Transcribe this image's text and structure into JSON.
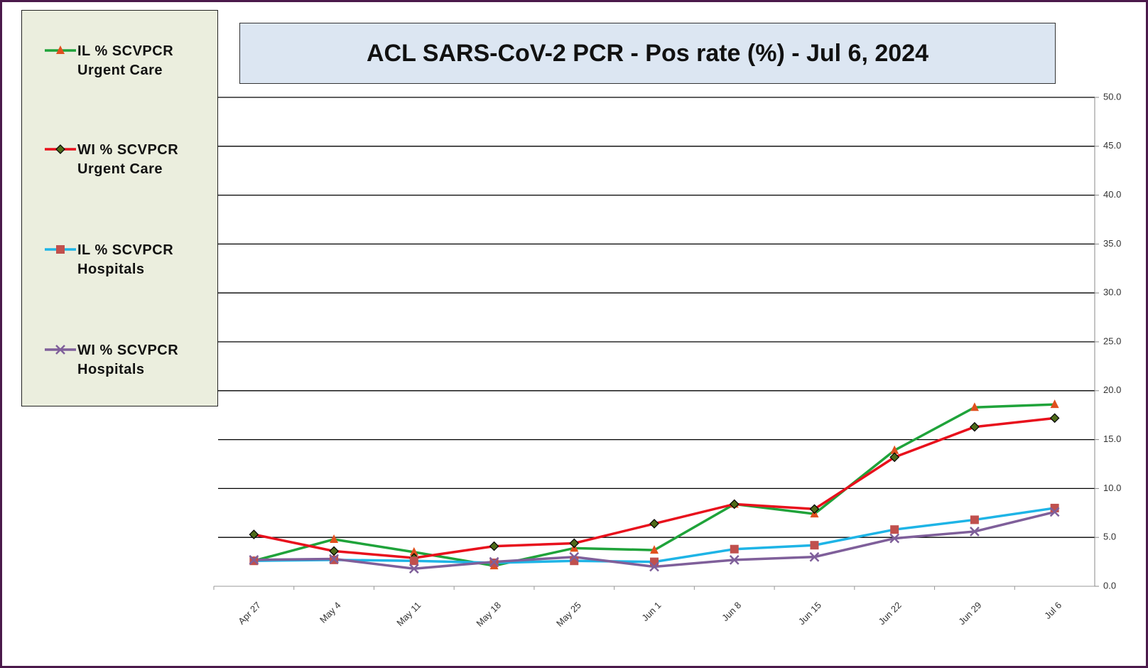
{
  "chart_data": {
    "type": "line",
    "title": "ACL SARS-CoV-2 PCR -  Pos rate (%) - Jul 6, 2024",
    "categories": [
      "Apr 27",
      "May 4",
      "May 11",
      "May 18",
      "May 25",
      "Jun 1",
      "Jun 8",
      "Jun 15",
      "Jun 22",
      "Jun 29",
      "Jul 6"
    ],
    "series": [
      {
        "name": "IL % SCVPCR Urgent Care",
        "color": "#1fa33a",
        "marker": "triangle",
        "marker_color": "#e0501e",
        "values": [
          2.6,
          4.8,
          3.5,
          2.1,
          3.9,
          3.7,
          8.4,
          7.4,
          13.9,
          18.3,
          18.6
        ]
      },
      {
        "name": "WI % SCVPCR Urgent Care",
        "color": "#e8101c",
        "marker": "diamond",
        "marker_color": "#4f6b1a",
        "values": [
          5.3,
          3.6,
          2.9,
          4.1,
          4.4,
          6.4,
          8.4,
          7.9,
          13.2,
          16.3,
          17.2
        ]
      },
      {
        "name": "IL % SCVPCR Hospitals",
        "color": "#1eb4e6",
        "marker": "square",
        "marker_color": "#c0504d",
        "values": [
          2.6,
          2.7,
          2.6,
          2.4,
          2.6,
          2.5,
          3.8,
          4.2,
          5.8,
          6.8,
          8.0
        ]
      },
      {
        "name": "WI % SCVPCR Hospitals",
        "color": "#7f5f9a",
        "marker": "x",
        "marker_color": "#7f5f9a",
        "values": [
          2.7,
          2.8,
          1.8,
          2.5,
          3.0,
          2.0,
          2.7,
          3.0,
          4.9,
          5.6,
          7.6
        ]
      }
    ],
    "ylim": [
      0,
      50
    ],
    "yticks": [
      {
        "value": 0,
        "label": "0.0"
      },
      {
        "value": 5,
        "label": "5.0"
      },
      {
        "value": 10,
        "label": "10.0"
      },
      {
        "value": 15,
        "label": "15.0"
      },
      {
        "value": 20,
        "label": "20.0"
      },
      {
        "value": 25,
        "label": "25.0"
      },
      {
        "value": 30,
        "label": "30.0"
      },
      {
        "value": 35,
        "label": "35.0"
      },
      {
        "value": 40,
        "label": "40.0"
      },
      {
        "value": 45,
        "label": "45.0"
      },
      {
        "value": 50,
        "label": "50.0"
      }
    ],
    "grid": true,
    "y_axis_side": "right",
    "legend": "left"
  }
}
